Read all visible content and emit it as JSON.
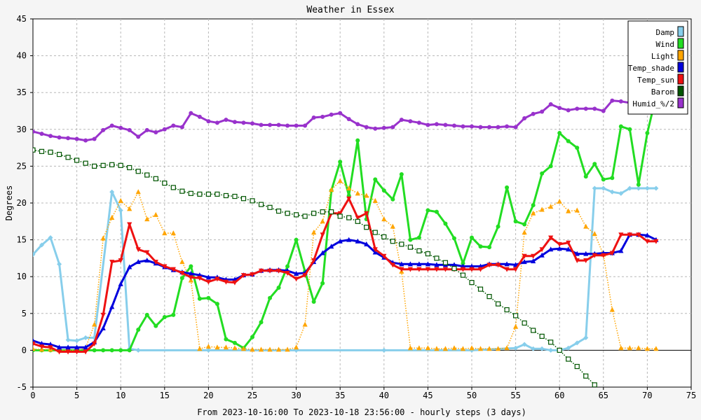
{
  "chart_data": {
    "type": "line",
    "title": "Weather in Essex",
    "xlabel": "From 2023-10-16:00 To 2023-10-18 23:56:00 - hourly steps (3 days)",
    "ylabel": "Degrees",
    "xlim": [
      0,
      75
    ],
    "ylim": [
      -5,
      45
    ],
    "x_ticks": [
      0,
      5,
      10,
      15,
      20,
      25,
      30,
      35,
      40,
      45,
      50,
      55,
      60,
      65,
      70,
      75
    ],
    "y_ticks": [
      -5,
      0,
      5,
      10,
      15,
      20,
      25,
      30,
      35,
      40,
      45
    ],
    "grid": true,
    "legend_position": "top-right",
    "series": [
      {
        "name": "Damp",
        "color": "#87ceeb",
        "marker": "diamond",
        "line": "solid",
        "width": 3,
        "x": [
          0,
          1,
          2,
          3,
          4,
          5,
          6,
          7,
          9,
          10,
          11,
          12,
          20,
          30,
          40,
          50,
          55,
          56,
          57,
          58,
          59,
          60,
          61,
          62,
          63,
          64,
          65,
          66,
          67,
          68,
          69,
          70,
          71
        ],
        "values": [
          13,
          14.3,
          15.3,
          11.7,
          1.4,
          1.3,
          1.7,
          1.7,
          21.5,
          19,
          0.2,
          0,
          0,
          0,
          0,
          0,
          0.3,
          0.8,
          0.2,
          0.2,
          0,
          0,
          0.3,
          1,
          1.7,
          22,
          22,
          21.5,
          21.3,
          22,
          22,
          22,
          22
        ]
      },
      {
        "name": "Wind",
        "color": "#22dd22",
        "marker": "circle",
        "line": "solid",
        "width": 3,
        "x": [
          0,
          1,
          2,
          3,
          4,
          5,
          6,
          7,
          8,
          9,
          10,
          11,
          12,
          13,
          14,
          15,
          16,
          17,
          18,
          19,
          20,
          21,
          22,
          23,
          24,
          25,
          26,
          27,
          28,
          29,
          30,
          31,
          32,
          33,
          34,
          35,
          36,
          37,
          38,
          39,
          40,
          41,
          42,
          43,
          44,
          45,
          46,
          47,
          48,
          49,
          50,
          51,
          52,
          53,
          54,
          55,
          56,
          57,
          58,
          59,
          60,
          61,
          62,
          63,
          64,
          65,
          66,
          67,
          68,
          69,
          70,
          71
        ],
        "values": [
          0,
          0,
          0,
          0,
          0,
          0,
          0,
          0,
          0,
          0,
          0,
          0,
          2.8,
          4.8,
          3.3,
          4.5,
          4.8,
          9.8,
          11.4,
          7,
          7.1,
          6.3,
          1.5,
          1,
          0.3,
          1.8,
          3.8,
          7.1,
          8.5,
          11.4,
          15,
          10.7,
          6.6,
          9.1,
          21.7,
          25.6,
          21,
          28.5,
          17.8,
          23.2,
          21.7,
          20.5,
          23.9,
          15,
          15.3,
          19,
          18.8,
          17.2,
          15.2,
          11.8,
          15.3,
          14.1,
          14,
          16.8,
          22.1,
          17.5,
          17.1,
          19.7,
          24,
          25,
          29.5,
          28.4,
          27.5,
          23.6,
          25.3,
          23.2,
          23.4,
          30.4,
          30,
          22.5,
          29.5,
          34.5
        ]
      },
      {
        "name": "Light",
        "color": "#ffa500",
        "marker": "triangle-up",
        "line": "dotted",
        "width": 1.5,
        "x": [
          0,
          1,
          2,
          3,
          4,
          5,
          6,
          7,
          8,
          9,
          10,
          11,
          12,
          13,
          14,
          15,
          16,
          17,
          18,
          19,
          20,
          21,
          22,
          23,
          24,
          25,
          26,
          27,
          28,
          29,
          30,
          31,
          32,
          33,
          34,
          35,
          36,
          37,
          38,
          39,
          40,
          41,
          42,
          43,
          44,
          45,
          46,
          47,
          48,
          49,
          50,
          51,
          52,
          53,
          54,
          55,
          56,
          57,
          58,
          59,
          60,
          61,
          62,
          63,
          64,
          65,
          66,
          67,
          68,
          69,
          70,
          71
        ],
        "values": [
          0.2,
          0.1,
          0.1,
          0,
          0,
          0,
          0.3,
          3.5,
          15.2,
          18,
          20.3,
          19.2,
          21.5,
          17.8,
          18.4,
          15.9,
          15.9,
          12,
          9.5,
          0.2,
          0.5,
          0.4,
          0.4,
          0.3,
          0.2,
          0.1,
          0.1,
          0.1,
          0.1,
          0.1,
          0.4,
          3.5,
          16,
          17.5,
          21.8,
          23,
          22,
          21.3,
          21,
          20.3,
          17.8,
          16.8,
          10.7,
          0.3,
          0.3,
          0.3,
          0.2,
          0.2,
          0.3,
          0.2,
          0.3,
          0.2,
          0.2,
          0.2,
          0.3,
          3.2,
          16,
          18.6,
          19.1,
          19.5,
          20.2,
          18.9,
          19,
          16.8,
          15.8,
          13,
          5.5,
          0.3,
          0.3,
          0.3,
          0.2,
          0.2
        ]
      },
      {
        "name": "Temp_shade",
        "color": "#0000dd",
        "marker": "triangle-up",
        "line": "solid",
        "width": 3,
        "x": [
          0,
          1,
          2,
          3,
          4,
          5,
          6,
          7,
          8,
          9,
          10,
          11,
          12,
          13,
          14,
          15,
          16,
          17,
          18,
          19,
          20,
          21,
          22,
          23,
          24,
          25,
          26,
          27,
          28,
          29,
          30,
          31,
          32,
          33,
          34,
          35,
          36,
          37,
          38,
          39,
          40,
          41,
          42,
          43,
          44,
          45,
          46,
          47,
          48,
          49,
          50,
          51,
          52,
          53,
          54,
          55,
          56,
          57,
          58,
          59,
          60,
          61,
          62,
          63,
          64,
          65,
          66,
          67,
          68,
          69,
          70,
          71
        ],
        "values": [
          1.3,
          0.9,
          0.8,
          0.4,
          0.4,
          0.4,
          0.4,
          1.1,
          3,
          5.9,
          9,
          11.3,
          12,
          12.2,
          11.8,
          11.3,
          10.9,
          10.6,
          10.4,
          10.2,
          9.9,
          9.9,
          9.6,
          9.6,
          10.2,
          10.3,
          10.8,
          10.9,
          10.9,
          10.8,
          10.4,
          10.5,
          12,
          13.2,
          14.1,
          14.8,
          15,
          14.8,
          14.4,
          13.3,
          12.6,
          11.9,
          11.7,
          11.7,
          11.7,
          11.7,
          11.6,
          11.6,
          11.6,
          11.4,
          11.4,
          11.4,
          11.7,
          11.7,
          11.7,
          11.6,
          12,
          12.1,
          12.9,
          13.7,
          13.8,
          13.7,
          13.1,
          13.1,
          13.1,
          13.2,
          13.2,
          13.5,
          15.7,
          15.7,
          15.6,
          15
        ]
      },
      {
        "name": "Temp_sun",
        "color": "#ee1111",
        "marker": "triangle-down",
        "line": "solid",
        "width": 3,
        "x": [
          0,
          1,
          2,
          3,
          4,
          5,
          6,
          7,
          8,
          9,
          10,
          11,
          12,
          13,
          14,
          15,
          16,
          17,
          18,
          19,
          20,
          21,
          22,
          23,
          24,
          25,
          26,
          27,
          28,
          29,
          30,
          31,
          32,
          33,
          34,
          35,
          36,
          37,
          38,
          39,
          40,
          41,
          42,
          43,
          44,
          45,
          46,
          47,
          48,
          49,
          50,
          51,
          52,
          53,
          54,
          55,
          56,
          57,
          58,
          59,
          60,
          61,
          62,
          63,
          64,
          65,
          66,
          67,
          68,
          69,
          70,
          71
        ],
        "values": [
          0.9,
          0.5,
          0.4,
          -0.2,
          -0.2,
          -0.2,
          -0.2,
          0.9,
          4.8,
          12,
          12.2,
          17.1,
          13.7,
          13.3,
          12,
          11.4,
          11,
          10.5,
          9.9,
          9.8,
          9.3,
          9.7,
          9.3,
          9.2,
          10.2,
          10.3,
          10.8,
          10.8,
          10.8,
          10.5,
          9.7,
          10.2,
          12.2,
          15.7,
          18.6,
          18.6,
          20.6,
          18,
          18.6,
          13.7,
          12.8,
          11.6,
          11,
          11,
          11,
          11,
          11,
          11,
          11,
          11,
          11,
          11,
          11.6,
          11.6,
          11,
          11,
          12.8,
          12.8,
          13.7,
          15.3,
          14.4,
          14.6,
          12.2,
          12.2,
          12.9,
          12.9,
          13.2,
          15.7,
          15.7,
          15.7,
          14.8,
          14.8
        ]
      },
      {
        "name": "Barom",
        "color": "#005500",
        "marker": "square",
        "line": "dotted",
        "width": 1.5,
        "x": [
          0,
          1,
          2,
          3,
          4,
          5,
          6,
          7,
          8,
          9,
          10,
          11,
          12,
          13,
          14,
          15,
          16,
          17,
          18,
          19,
          20,
          21,
          22,
          23,
          24,
          25,
          26,
          27,
          28,
          29,
          30,
          31,
          32,
          33,
          34,
          35,
          36,
          37,
          38,
          39,
          40,
          41,
          42,
          43,
          44,
          45,
          46,
          47,
          48,
          49,
          50,
          51,
          52,
          53,
          54,
          55,
          56,
          57,
          58,
          59,
          60,
          61,
          62,
          63,
          64,
          65,
          66,
          67
        ],
        "values": [
          27.2,
          27,
          26.9,
          26.6,
          26.2,
          25.8,
          25.4,
          25,
          25.1,
          25.2,
          25.1,
          24.8,
          24.3,
          23.8,
          23.3,
          22.7,
          22.1,
          21.6,
          21.3,
          21.2,
          21.2,
          21.2,
          21,
          20.9,
          20.6,
          20.3,
          19.8,
          19.4,
          18.9,
          18.6,
          18.4,
          18.2,
          18.6,
          18.8,
          18.8,
          18.2,
          18,
          17.5,
          16.7,
          16,
          15.4,
          14.8,
          14.4,
          14,
          13.5,
          13.1,
          12.5,
          11.9,
          11.1,
          10.2,
          9.2,
          8.3,
          7.3,
          6.3,
          5.5,
          4.7,
          3.7,
          2.7,
          1.9,
          1.1,
          0,
          -1.2,
          -2.2,
          -3.5,
          -4.7,
          -6.3,
          -7.5,
          -8.4
        ]
      },
      {
        "name": "Humid_%/2",
        "color": "#9932cc",
        "marker": "circle",
        "line": "solid",
        "width": 3,
        "x": [
          0,
          1,
          2,
          3,
          4,
          5,
          6,
          7,
          8,
          9,
          10,
          11,
          12,
          13,
          14,
          15,
          16,
          17,
          18,
          19,
          20,
          21,
          22,
          23,
          24,
          25,
          26,
          27,
          28,
          29,
          30,
          31,
          32,
          33,
          34,
          35,
          36,
          37,
          38,
          39,
          40,
          41,
          42,
          43,
          44,
          45,
          46,
          47,
          48,
          49,
          50,
          51,
          52,
          53,
          54,
          55,
          56,
          57,
          58,
          59,
          60,
          61,
          62,
          63,
          64,
          65,
          66,
          67,
          68,
          69,
          70,
          71
        ],
        "values": [
          29.7,
          29.4,
          29.1,
          28.9,
          28.8,
          28.7,
          28.5,
          28.7,
          29.9,
          30.5,
          30.2,
          29.9,
          29,
          29.9,
          29.6,
          30,
          30.5,
          30.3,
          32.2,
          31.7,
          31.1,
          30.9,
          31.3,
          31,
          30.9,
          30.8,
          30.6,
          30.6,
          30.6,
          30.5,
          30.5,
          30.5,
          31.6,
          31.7,
          32,
          32.2,
          31.4,
          30.7,
          30.3,
          30.1,
          30.2,
          30.3,
          31.3,
          31.1,
          30.9,
          30.6,
          30.7,
          30.6,
          30.5,
          30.4,
          30.4,
          30.3,
          30.3,
          30.3,
          30.4,
          30.3,
          31.5,
          32.1,
          32.4,
          33.4,
          32.9,
          32.6,
          32.8,
          32.8,
          32.8,
          32.5,
          33.9,
          33.8,
          33.6,
          33.5,
          33.5,
          33.8
        ]
      }
    ]
  }
}
